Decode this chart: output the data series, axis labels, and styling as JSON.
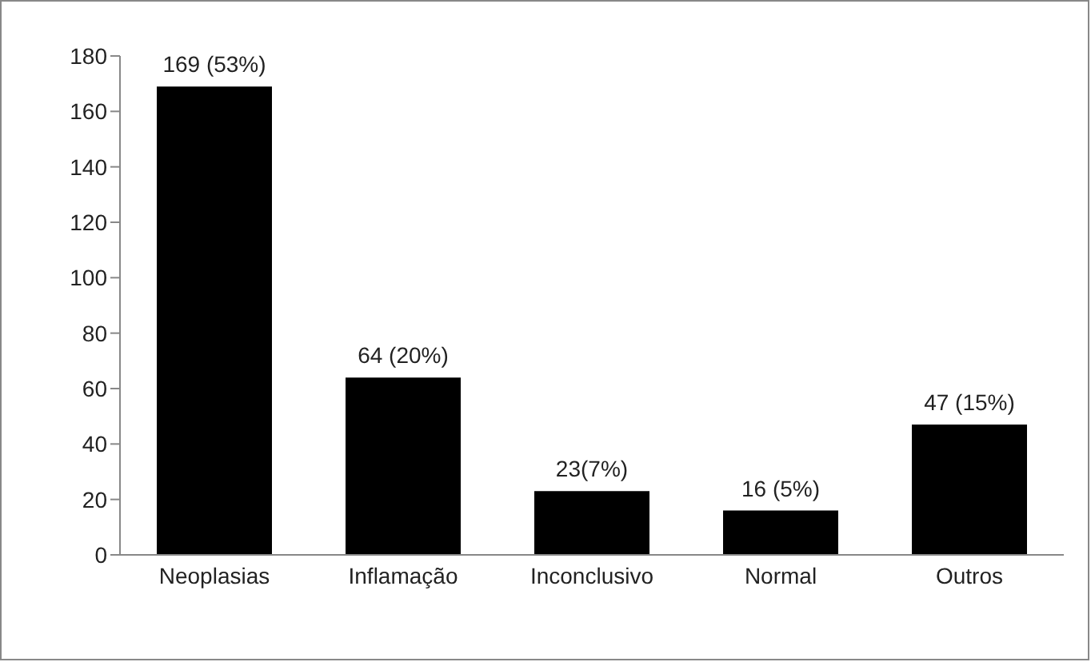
{
  "chart_data": {
    "type": "bar",
    "categories": [
      "Neoplasias",
      "Inflamação",
      "Inconclusivo",
      "Normal",
      "Outros"
    ],
    "values": [
      169,
      64,
      23,
      16,
      47
    ],
    "value_labels": [
      "169 (53%)",
      "64 (20%)",
      "23(7%)",
      "16 (5%)",
      "47 (15%)"
    ],
    "color": "#000000",
    "ylim": [
      0,
      180
    ],
    "yticks": [
      0,
      20,
      40,
      60,
      80,
      100,
      120,
      140,
      160,
      180
    ],
    "grid": false,
    "legend": false
  }
}
